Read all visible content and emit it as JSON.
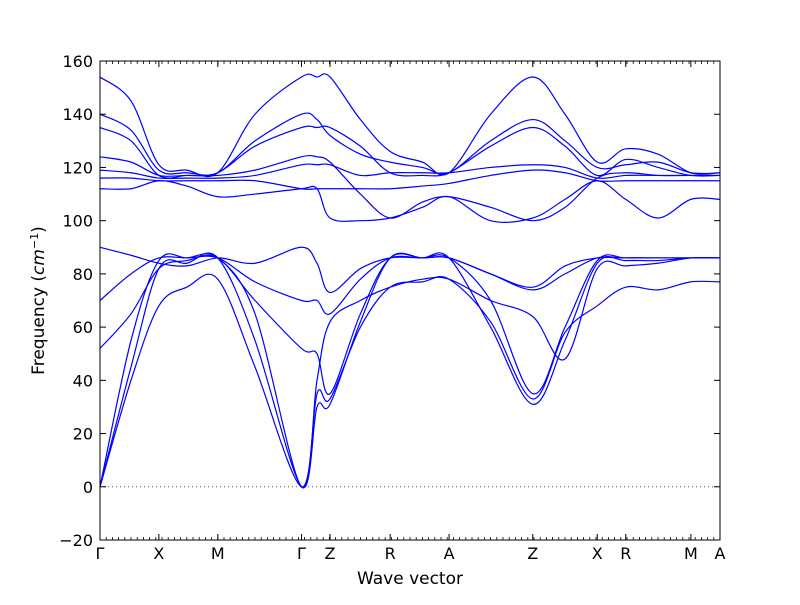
{
  "chart_data": {
    "type": "line",
    "xlabel": "Wave vector",
    "ylabel_text": "Frequency (",
    "ylabel_unit_base": "cm",
    "ylabel_unit_exp": "−1",
    "ylabel_close": ")",
    "ylim": [
      -20,
      160
    ],
    "yticks": [
      -20,
      0,
      20,
      40,
      60,
      80,
      100,
      120,
      140,
      160
    ],
    "ytick_labels": [
      "−20",
      "0",
      "20",
      "40",
      "60",
      "80",
      "100",
      "120",
      "140",
      "160"
    ],
    "xlim": [
      0,
      1
    ],
    "xticks": [
      {
        "label": "Γ",
        "x": 0.0
      },
      {
        "label": "X",
        "x": 0.095
      },
      {
        "label": "M",
        "x": 0.19
      },
      {
        "label": "Γ",
        "x": 0.325
      },
      {
        "label": "Z",
        "x": 0.371
      },
      {
        "label": "R",
        "x": 0.468
      },
      {
        "label": "A",
        "x": 0.563
      },
      {
        "label": "Z",
        "x": 0.698
      },
      {
        "label": "X",
        "x": 0.802
      },
      {
        "label": "R",
        "x": 0.848
      },
      {
        "label": "M",
        "x": 0.953
      },
      {
        "label": "A",
        "x": 1.0
      }
    ],
    "zero_line": {
      "y": 0,
      "style": "dotted",
      "color": "#555555"
    },
    "line_color": "#0000ff",
    "series": [
      {
        "x": [
          0,
          0.05,
          0.095,
          0.14,
          0.19,
          0.25,
          0.325,
          0.35,
          0.371,
          0.42,
          0.468,
          0.52,
          0.563,
          0.63,
          0.698,
          0.75,
          0.802,
          0.848,
          0.9,
          0.953,
          1.0
        ],
        "y": [
          0,
          45,
          82,
          84,
          86,
          55,
          0,
          30,
          31,
          62,
          86,
          86,
          86,
          60,
          31,
          55,
          84,
          85,
          85,
          86,
          86
        ]
      },
      {
        "x": [
          0,
          0.05,
          0.095,
          0.14,
          0.19,
          0.25,
          0.325,
          0.35,
          0.371,
          0.42,
          0.468,
          0.52,
          0.563,
          0.63,
          0.698,
          0.75,
          0.802,
          0.848,
          0.9,
          0.953,
          1.0
        ],
        "y": [
          0,
          40,
          68,
          75,
          78,
          45,
          0,
          35,
          33,
          60,
          75,
          77,
          78,
          62,
          33,
          58,
          68,
          75,
          74,
          77,
          77
        ]
      },
      {
        "x": [
          0,
          0.05,
          0.095,
          0.14,
          0.19,
          0.25,
          0.325,
          0.35,
          0.371,
          0.42,
          0.468,
          0.52,
          0.563,
          0.63,
          0.698,
          0.75,
          0.802,
          0.848,
          0.9,
          0.953,
          1.0
        ],
        "y": [
          0,
          55,
          85,
          86,
          86,
          65,
          0,
          40,
          62,
          70,
          75,
          78,
          78,
          70,
          64,
          48,
          82,
          83,
          84,
          86,
          86
        ]
      },
      {
        "x": [
          0,
          0.05,
          0.095,
          0.14,
          0.19,
          0.25,
          0.325,
          0.35,
          0.371,
          0.42,
          0.468,
          0.52,
          0.563,
          0.63,
          0.698,
          0.75,
          0.802,
          0.848,
          0.9,
          0.953,
          1.0
        ],
        "y": [
          52,
          65,
          82,
          85,
          86,
          70,
          52,
          50,
          35,
          65,
          86,
          86,
          86,
          70,
          35,
          60,
          85,
          86,
          86,
          86,
          86
        ]
      },
      {
        "x": [
          0,
          0.05,
          0.095,
          0.14,
          0.19,
          0.25,
          0.325,
          0.35,
          0.371,
          0.42,
          0.468,
          0.52,
          0.563,
          0.63,
          0.698,
          0.75,
          0.802,
          0.848,
          0.9,
          0.953,
          1.0
        ],
        "y": [
          70,
          80,
          86,
          86,
          86,
          77,
          70,
          70,
          65,
          78,
          86,
          86,
          86,
          80,
          74,
          80,
          86,
          86,
          86,
          86,
          86
        ]
      },
      {
        "x": [
          0,
          0.05,
          0.095,
          0.14,
          0.19,
          0.25,
          0.325,
          0.35,
          0.371,
          0.42,
          0.468,
          0.52,
          0.563,
          0.63,
          0.698,
          0.75,
          0.802,
          0.848,
          0.9,
          0.953,
          1.0
        ],
        "y": [
          90,
          87,
          84,
          83,
          86,
          84,
          90,
          84,
          73,
          82,
          86,
          86,
          86,
          80,
          75,
          83,
          86,
          86,
          86,
          86,
          86
        ]
      },
      {
        "x": [
          0,
          0.05,
          0.095,
          0.14,
          0.19,
          0.25,
          0.325,
          0.35,
          0.371,
          0.42,
          0.468,
          0.52,
          0.563,
          0.63,
          0.698,
          0.75,
          0.802,
          0.848,
          0.9,
          0.953,
          1.0
        ],
        "y": [
          112,
          112,
          115,
          113,
          109,
          110,
          112,
          112,
          101,
          100,
          101,
          105,
          109,
          100,
          101,
          108,
          115,
          108,
          101,
          108,
          108
        ]
      },
      {
        "x": [
          0,
          0.05,
          0.095,
          0.14,
          0.19,
          0.25,
          0.325,
          0.35,
          0.371,
          0.42,
          0.468,
          0.52,
          0.563,
          0.63,
          0.698,
          0.75,
          0.802,
          0.848,
          0.9,
          0.953,
          1.0
        ],
        "y": [
          116,
          116,
          115,
          115,
          115,
          115,
          112,
          112,
          112,
          112,
          112,
          113,
          114,
          117,
          119,
          118,
          115,
          115,
          115,
          115,
          115
        ]
      },
      {
        "x": [
          0,
          0.05,
          0.095,
          0.14,
          0.19,
          0.25,
          0.325,
          0.35,
          0.371,
          0.42,
          0.468,
          0.52,
          0.563,
          0.63,
          0.698,
          0.75,
          0.802,
          0.848,
          0.9,
          0.953,
          1.0
        ],
        "y": [
          119,
          118,
          116,
          116,
          116,
          117,
          121,
          121,
          121,
          117,
          118,
          118,
          118,
          120,
          121,
          120,
          116,
          117,
          117,
          117,
          117
        ]
      },
      {
        "x": [
          0,
          0.05,
          0.095,
          0.14,
          0.19,
          0.25,
          0.325,
          0.35,
          0.371,
          0.42,
          0.468,
          0.52,
          0.563,
          0.63,
          0.698,
          0.75,
          0.802,
          0.848,
          0.9,
          0.953,
          1.0
        ],
        "y": [
          124,
          122,
          117,
          117,
          117,
          119,
          124,
          124,
          122,
          110,
          101,
          107,
          109,
          105,
          100,
          105,
          116,
          118,
          117,
          117,
          117
        ]
      },
      {
        "x": [
          0,
          0.05,
          0.095,
          0.14,
          0.19,
          0.25,
          0.325,
          0.35,
          0.371,
          0.42,
          0.468,
          0.52,
          0.563,
          0.63,
          0.698,
          0.75,
          0.802,
          0.848,
          0.9,
          0.953,
          1.0
        ],
        "y": [
          135,
          130,
          117,
          117,
          118,
          128,
          135,
          135,
          135,
          128,
          118,
          117,
          118,
          128,
          135,
          128,
          117,
          123,
          120,
          117,
          117
        ]
      },
      {
        "x": [
          0,
          0.05,
          0.095,
          0.14,
          0.19,
          0.25,
          0.325,
          0.35,
          0.371,
          0.42,
          0.468,
          0.52,
          0.563,
          0.63,
          0.698,
          0.75,
          0.802,
          0.848,
          0.9,
          0.953,
          1.0
        ],
        "y": [
          140,
          134,
          119,
          118,
          118,
          130,
          140,
          138,
          132,
          125,
          122,
          120,
          118,
          130,
          138,
          130,
          120,
          121,
          122,
          118,
          118
        ]
      },
      {
        "x": [
          0,
          0.05,
          0.095,
          0.14,
          0.19,
          0.25,
          0.325,
          0.35,
          0.371,
          0.42,
          0.468,
          0.52,
          0.563,
          0.63,
          0.698,
          0.75,
          0.802,
          0.848,
          0.9,
          0.953,
          1.0
        ],
        "y": [
          154,
          145,
          121,
          119,
          118,
          140,
          154,
          154,
          154,
          138,
          126,
          122,
          118,
          140,
          154,
          140,
          122,
          127,
          125,
          118,
          118
        ]
      }
    ]
  }
}
